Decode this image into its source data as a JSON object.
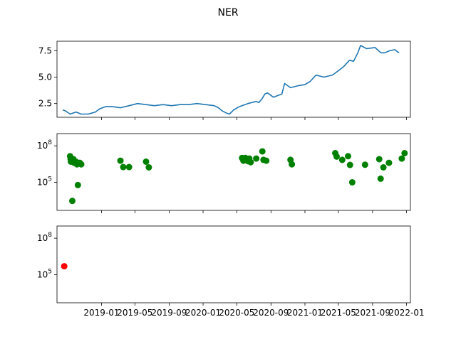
{
  "title": "NER",
  "colors": {
    "line": "#1f77b4",
    "scatter_green": "#008000",
    "scatter_red": "#ff0000"
  },
  "x_axis": {
    "type": "date",
    "range": [
      "2018-07-25",
      "2022-01-15"
    ],
    "tick_dates": [
      "2019-01-01",
      "2019-05-01",
      "2019-09-01",
      "2020-01-01",
      "2020-05-01",
      "2020-09-01",
      "2021-01-01",
      "2021-05-01",
      "2021-09-01",
      "2022-01-01"
    ],
    "tick_labels": [
      "2019-01",
      "2019-05",
      "2019-09",
      "2020-01",
      "2020-05",
      "2020-09",
      "2021-01",
      "2021-05",
      "2021-09",
      "2022-01"
    ]
  },
  "chart_data": [
    {
      "type": "line",
      "title": "NER",
      "ylim": [
        1.2,
        8.4
      ],
      "yticks": [
        2.5,
        5.0,
        7.5
      ],
      "ytick_labels": [
        "2.5",
        "5.0",
        "7.5"
      ],
      "grid": false,
      "x": [
        "2018-08-15",
        "2018-08-25",
        "2018-09-10",
        "2018-10-01",
        "2018-10-20",
        "2018-11-15",
        "2018-12-10",
        "2018-12-25",
        "2019-01-15",
        "2019-02-10",
        "2019-03-10",
        "2019-04-10",
        "2019-05-10",
        "2019-06-10",
        "2019-07-10",
        "2019-08-10",
        "2019-09-10",
        "2019-10-10",
        "2019-11-10",
        "2019-12-10",
        "2020-01-10",
        "2020-02-10",
        "2020-02-25",
        "2020-03-10",
        "2020-03-25",
        "2020-04-05",
        "2020-04-20",
        "2020-05-10",
        "2020-06-10",
        "2020-07-10",
        "2020-07-20",
        "2020-08-01",
        "2020-08-10",
        "2020-08-20",
        "2020-09-10",
        "2020-10-10",
        "2020-10-20",
        "2020-11-10",
        "2020-12-10",
        "2021-01-01",
        "2021-01-20",
        "2021-02-10",
        "2021-03-10",
        "2021-04-10",
        "2021-05-01",
        "2021-05-20",
        "2021-06-10",
        "2021-06-25",
        "2021-07-10",
        "2021-07-20",
        "2021-08-10",
        "2021-09-10",
        "2021-10-01",
        "2021-10-15",
        "2021-11-01",
        "2021-11-20",
        "2021-12-05"
      ],
      "values": [
        1.9,
        1.8,
        1.5,
        1.7,
        1.5,
        1.5,
        1.7,
        2.0,
        2.2,
        2.2,
        2.1,
        2.3,
        2.5,
        2.4,
        2.3,
        2.4,
        2.3,
        2.4,
        2.4,
        2.5,
        2.4,
        2.3,
        2.1,
        1.8,
        1.6,
        1.5,
        1.9,
        2.2,
        2.5,
        2.7,
        2.6,
        3.0,
        3.4,
        3.5,
        3.1,
        3.4,
        4.4,
        4.0,
        4.2,
        4.3,
        4.6,
        5.2,
        5.0,
        5.2,
        5.6,
        6.0,
        6.6,
        6.5,
        7.3,
        8.0,
        7.7,
        7.8,
        7.3,
        7.3,
        7.5,
        7.6,
        7.3
      ]
    },
    {
      "type": "scatter",
      "yscale": "log",
      "ylim": [
        500,
        1000000000
      ],
      "yticks": [
        100000,
        100000000
      ],
      "ytick_labels": [
        "10^5",
        "10^8"
      ],
      "color": "#008000",
      "grid": false,
      "x": [
        "2018-09-10",
        "2018-09-12",
        "2018-09-13",
        "2018-09-15",
        "2018-09-18",
        "2018-09-22",
        "2018-09-25",
        "2018-10-01",
        "2018-10-05",
        "2018-10-08",
        "2018-10-15",
        "2018-10-20",
        "2019-03-10",
        "2019-03-20",
        "2019-04-10",
        "2019-06-10",
        "2019-06-20",
        "2020-05-20",
        "2020-05-25",
        "2020-06-01",
        "2020-06-05",
        "2020-06-10",
        "2020-06-15",
        "2020-06-20",
        "2020-07-10",
        "2020-08-01",
        "2020-08-05",
        "2020-08-15",
        "2020-11-10",
        "2020-11-15",
        "2021-04-20",
        "2021-04-25",
        "2021-05-15",
        "2021-06-05",
        "2021-06-12",
        "2021-06-20",
        "2021-08-05",
        "2021-09-25",
        "2021-09-30",
        "2021-10-10",
        "2021-10-30",
        "2021-12-15",
        "2021-12-25"
      ],
      "values": [
        14000000,
        8000000,
        5000000,
        6000000,
        3000,
        8000000,
        4000000,
        5000000,
        3000000,
        60000,
        4000000,
        3000000,
        6000000,
        1800000,
        1800000,
        5000000,
        1700000,
        10000000,
        6000000,
        10000000,
        7000000,
        5500000,
        9000000,
        4500000,
        9000000,
        35000000,
        7000000,
        6000000,
        7000000,
        3000000,
        25000000,
        13000000,
        7000000,
        14000000,
        2700000,
        100000,
        2800000,
        8000000,
        200000,
        1700000,
        4000000,
        9000000,
        25000000
      ]
    },
    {
      "type": "scatter",
      "yscale": "log",
      "ylim": [
        500,
        1000000000
      ],
      "yticks": [
        100000,
        100000000
      ],
      "ytick_labels": [
        "10^5",
        "10^8"
      ],
      "color": "#ff0000",
      "grid": false,
      "x": [
        "2018-08-20"
      ],
      "values": [
        500000
      ]
    }
  ]
}
